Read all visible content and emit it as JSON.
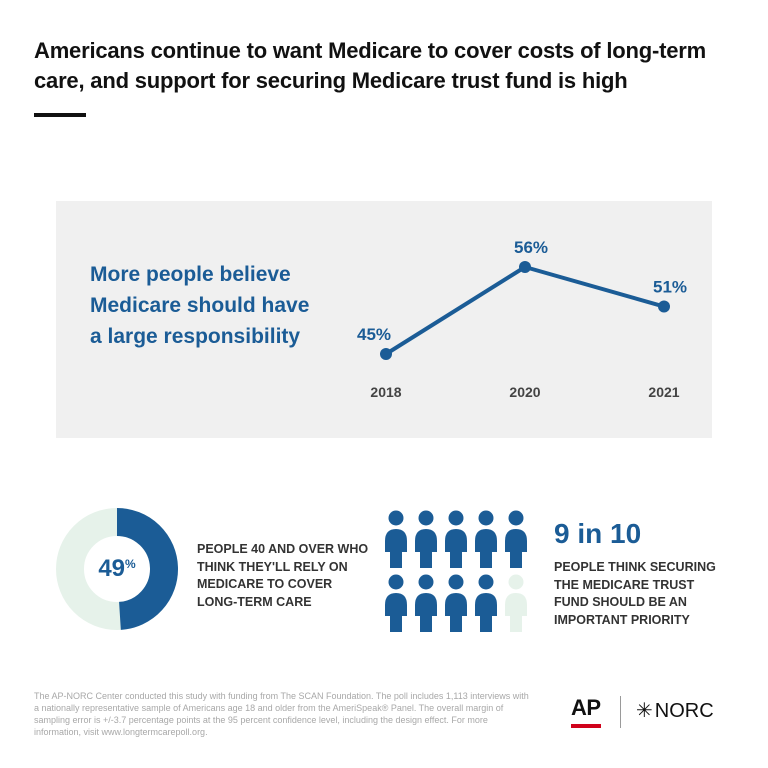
{
  "title": "Americans continue to want Medicare to cover costs of long-term care, and support for securing Medicare trust fund is high",
  "colors": {
    "primary": "#1b5c96",
    "donut_track": "#e6f2ea",
    "person_light": "#e6f2ea",
    "panel_bg": "#f0f0f0",
    "ap_red": "#d0021b"
  },
  "chart_data": {
    "type": "line",
    "headline": "More people believe Medicare should have a large responsibility",
    "categories": [
      "2018",
      "2020",
      "2021"
    ],
    "values": [
      45,
      56,
      51
    ],
    "value_labels": [
      "45%",
      "56%",
      "51%"
    ],
    "ylim": [
      40,
      60
    ],
    "grid": false
  },
  "stat_donut": {
    "value": 49,
    "number_label": "49",
    "percent_sign": "%",
    "text": "People 40 and over who think they'll rely on Medicare to cover long-term care"
  },
  "stat_people": {
    "headline": "9 in 10",
    "filled": 9,
    "total": 10,
    "text": "People think securing the Medicare trust fund should be an important priority"
  },
  "footnote": "The AP-NORC Center conducted this study with funding from The SCAN Foundation. The poll includes 1,113 interviews with a nationally representative sample of Americans age 18 and older from the AmeriSpeak® Panel. The overall margin of sampling error is +/-3.7 percentage points at the 95 percent confidence level, including the design effect. For more information, visit www.longtermcarepoll.org.",
  "logos": {
    "ap": "AP",
    "norc": "NORC"
  }
}
